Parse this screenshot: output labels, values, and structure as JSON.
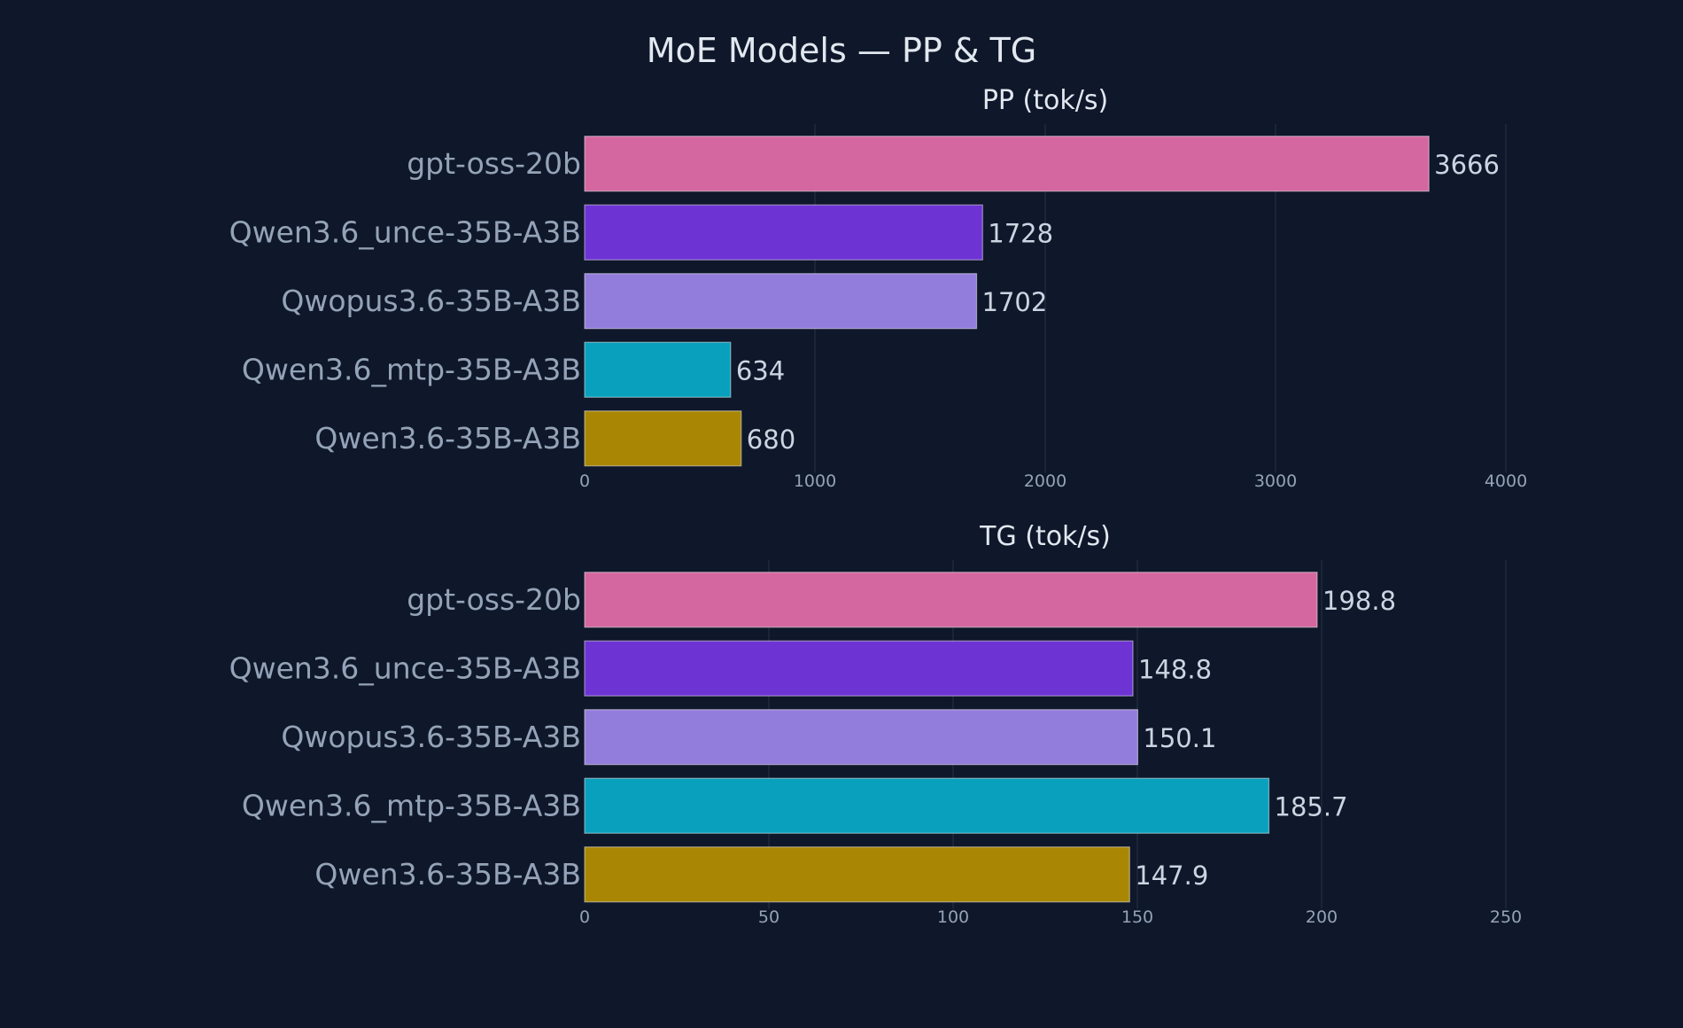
{
  "title": "MoE Models — PP & TG",
  "chart_data": [
    {
      "type": "bar",
      "orientation": "horizontal",
      "title": "PP (tok/s)",
      "categories": [
        "gpt-oss-20b",
        "Qwen3.6_unce-35B-A3B",
        "Qwopus3.6-35B-A3B",
        "Qwen3.6_mtp-35B-A3B",
        "Qwen3.6-35B-A3B"
      ],
      "values": [
        3666,
        1728,
        1702,
        634,
        680
      ],
      "value_labels": [
        "3666",
        "1728",
        "1702",
        "634",
        "680"
      ],
      "colors": [
        "#d4679f",
        "#6d33d3",
        "#927cdc",
        "#08a0bd",
        "#a98705"
      ],
      "xlim": [
        0,
        4000
      ],
      "xticks": [
        0,
        1000,
        2000,
        3000,
        4000
      ],
      "grid": true
    },
    {
      "type": "bar",
      "orientation": "horizontal",
      "title": "TG (tok/s)",
      "categories": [
        "gpt-oss-20b",
        "Qwen3.6_unce-35B-A3B",
        "Qwopus3.6-35B-A3B",
        "Qwen3.6_mtp-35B-A3B",
        "Qwen3.6-35B-A3B"
      ],
      "values": [
        198.8,
        148.8,
        150.1,
        185.7,
        147.9
      ],
      "value_labels": [
        "198.8",
        "148.8",
        "150.1",
        "185.7",
        "147.9"
      ],
      "colors": [
        "#d4679f",
        "#6d33d3",
        "#927cdc",
        "#08a0bd",
        "#a98705"
      ],
      "xlim": [
        0,
        250
      ],
      "xticks": [
        0,
        50,
        100,
        150,
        200,
        250
      ],
      "grid": true
    }
  ]
}
